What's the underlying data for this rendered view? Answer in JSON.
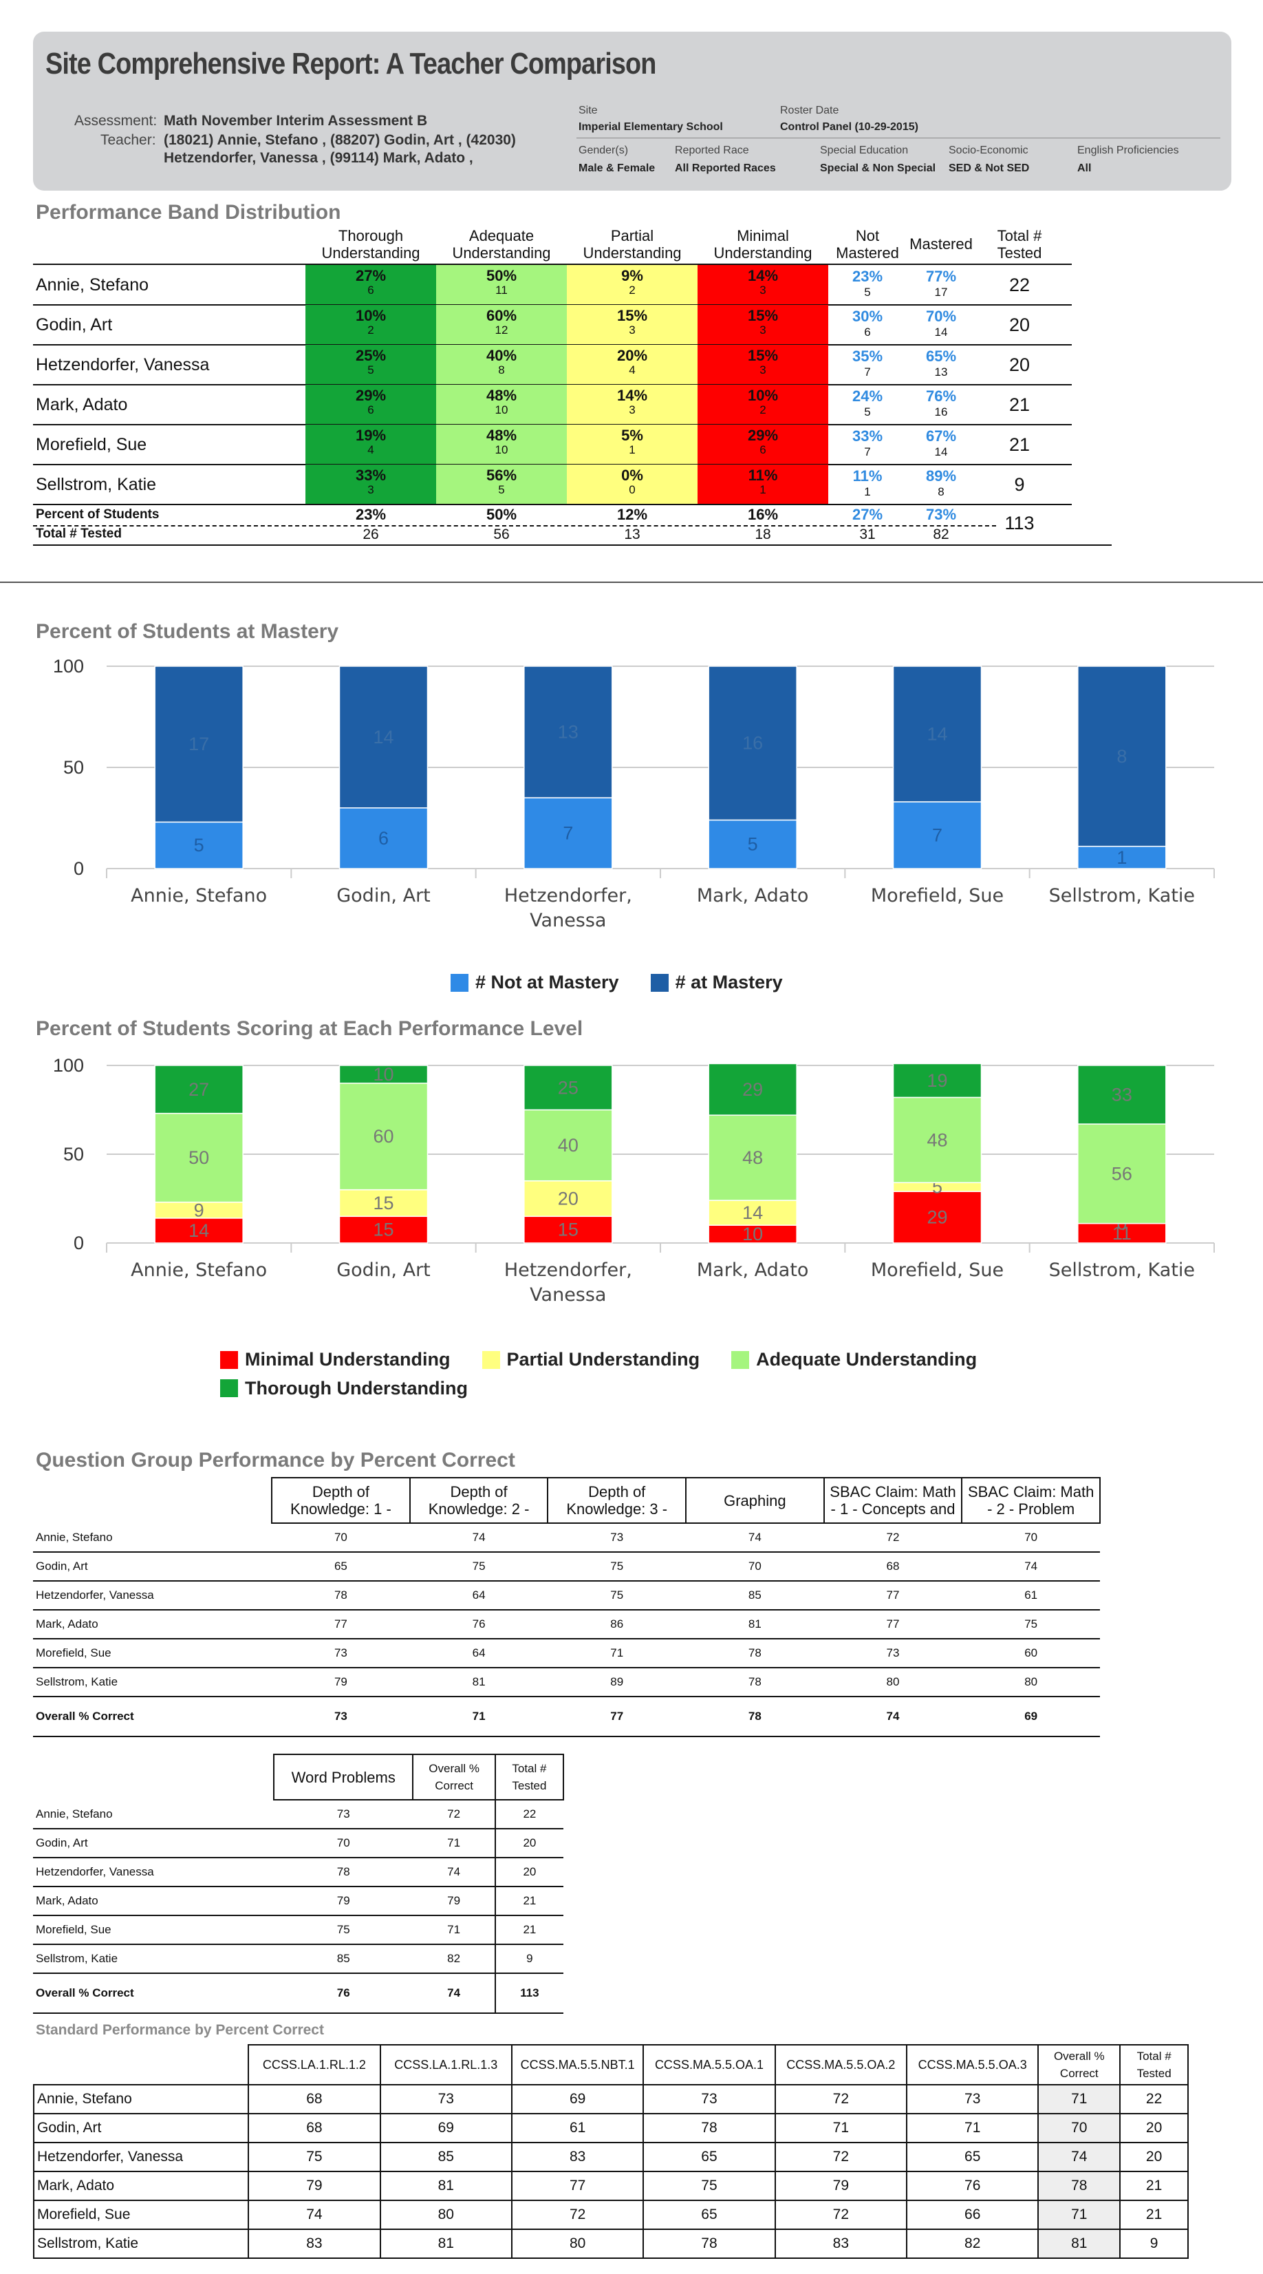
{
  "header": {
    "title": "Site Comprehensive Report: A Teacher Comparison",
    "assessment_label": "Assessment:",
    "assessment_value": "Math November Interim Assessment B",
    "teacher_label": "Teacher:",
    "teacher_value_line1": "(18021) Annie, Stefano , (88207) Godin, Art , (42030)",
    "teacher_value_line2": "Hetzendorfer, Vanessa , (99114) Mark, Adato ,",
    "site_label": "Site",
    "site_value": "Imperial Elementary School",
    "roster_label": "Roster Date",
    "roster_value": "Control Panel (10-29-2015)",
    "gender_label": "Gender(s)",
    "gender_value": "Male & Female",
    "race_label": "Reported Race",
    "race_value": "All Reported Races",
    "sped_label": "Special Education",
    "sped_value": "Special & Non Special",
    "ses_label": "Socio-Economic",
    "ses_value": "SED & Not SED",
    "ep_label": "English Proficiencies",
    "ep_value": "All"
  },
  "performance_band": {
    "title": "Performance Band Distribution",
    "headers": {
      "thorough": [
        "Thorough",
        "Understanding"
      ],
      "adequate": [
        "Adequate",
        "Understanding"
      ],
      "partial": [
        "Partial",
        "Understanding"
      ],
      "minimal": [
        "Minimal",
        "Understanding"
      ],
      "not_mastered": [
        "Not",
        "Mastered"
      ],
      "mastered": [
        "Mastered"
      ],
      "total": [
        "Total #",
        "Tested"
      ]
    },
    "colors": {
      "thorough": "#13a538",
      "adequate": "#a5f57e",
      "partial": "#ffff7f",
      "minimal": "#fe0000",
      "mastery_text": "#2f8ae0"
    },
    "rows": [
      {
        "name": "Annie, Stefano",
        "thorough": [
          "27%",
          "6"
        ],
        "adequate": [
          "50%",
          "11"
        ],
        "partial": [
          "9%",
          "2"
        ],
        "minimal": [
          "14%",
          "3"
        ],
        "not_mastered": [
          "23%",
          "5"
        ],
        "mastered": [
          "77%",
          "17"
        ],
        "total": "22"
      },
      {
        "name": "Godin, Art",
        "thorough": [
          "10%",
          "2"
        ],
        "adequate": [
          "60%",
          "12"
        ],
        "partial": [
          "15%",
          "3"
        ],
        "minimal": [
          "15%",
          "3"
        ],
        "not_mastered": [
          "30%",
          "6"
        ],
        "mastered": [
          "70%",
          "14"
        ],
        "total": "20"
      },
      {
        "name": "Hetzendorfer, Vanessa",
        "thorough": [
          "25%",
          "5"
        ],
        "adequate": [
          "40%",
          "8"
        ],
        "partial": [
          "20%",
          "4"
        ],
        "minimal": [
          "15%",
          "3"
        ],
        "not_mastered": [
          "35%",
          "7"
        ],
        "mastered": [
          "65%",
          "13"
        ],
        "total": "20"
      },
      {
        "name": "Mark, Adato",
        "thorough": [
          "29%",
          "6"
        ],
        "adequate": [
          "48%",
          "10"
        ],
        "partial": [
          "14%",
          "3"
        ],
        "minimal": [
          "10%",
          "2"
        ],
        "not_mastered": [
          "24%",
          "5"
        ],
        "mastered": [
          "76%",
          "16"
        ],
        "total": "21"
      },
      {
        "name": "Morefield, Sue",
        "thorough": [
          "19%",
          "4"
        ],
        "adequate": [
          "48%",
          "10"
        ],
        "partial": [
          "5%",
          "1"
        ],
        "minimal": [
          "29%",
          "6"
        ],
        "not_mastered": [
          "33%",
          "7"
        ],
        "mastered": [
          "67%",
          "14"
        ],
        "total": "21"
      },
      {
        "name": "Sellstrom, Katie",
        "thorough": [
          "33%",
          "3"
        ],
        "adequate": [
          "56%",
          "5"
        ],
        "partial": [
          "0%",
          "0"
        ],
        "minimal": [
          "11%",
          "1"
        ],
        "not_mastered": [
          "11%",
          "1"
        ],
        "mastered": [
          "89%",
          "8"
        ],
        "total": "9"
      }
    ],
    "percent_row": {
      "label": "Percent of Students",
      "thorough": "23%",
      "adequate": "50%",
      "partial": "12%",
      "minimal": "16%",
      "not_mastered": "27%",
      "mastered": "73%",
      "total": "113"
    },
    "total_row": {
      "label": "Total # Tested",
      "thorough": "26",
      "adequate": "56",
      "partial": "13",
      "minimal": "18",
      "not_mastered": "31",
      "mastered": "82"
    }
  },
  "chart_data": [
    {
      "type": "bar",
      "stacked": true,
      "title": "Percent of Students at Mastery",
      "categories": [
        [
          "Annie, Stefano"
        ],
        [
          "Godin, Art"
        ],
        [
          "Hetzendorfer,",
          "Vanessa"
        ],
        [
          "Mark, Adato"
        ],
        [
          "Morefield, Sue"
        ],
        [
          "Sellstrom, Katie"
        ]
      ],
      "yticks": [
        "100",
        "50",
        "0"
      ],
      "ylim": [
        0,
        100
      ],
      "series": [
        {
          "name": "# Not at Mastery",
          "color": "#2f8ae6",
          "values": [
            23,
            30,
            35,
            24,
            33,
            11
          ],
          "labels": [
            "5",
            "6",
            "7",
            "5",
            "7",
            "1"
          ]
        },
        {
          "name": "# at Mastery",
          "color": "#1e5ea5",
          "values": [
            77,
            70,
            65,
            76,
            67,
            89
          ],
          "labels": [
            "17",
            "14",
            "13",
            "16",
            "14",
            "8"
          ]
        }
      ],
      "legend": "bottom"
    },
    {
      "type": "bar",
      "stacked": true,
      "title": "Percent of Students Scoring at Each Performance Level",
      "categories": [
        [
          "Annie, Stefano"
        ],
        [
          "Godin, Art"
        ],
        [
          "Hetzendorfer,",
          "Vanessa"
        ],
        [
          "Mark, Adato"
        ],
        [
          "Morefield, Sue"
        ],
        [
          "Sellstrom, Katie"
        ]
      ],
      "yticks": [
        "100",
        "50",
        "0"
      ],
      "ylim": [
        0,
        100
      ],
      "series": [
        {
          "name": "Minimal Understanding",
          "color": "#fe0000",
          "values": [
            14,
            15,
            15,
            10,
            29,
            11
          ]
        },
        {
          "name": "Partial Understanding",
          "color": "#ffff7f",
          "values": [
            9,
            15,
            20,
            14,
            5,
            0
          ]
        },
        {
          "name": "Adequate Understanding",
          "color": "#a5f57e",
          "values": [
            50,
            60,
            40,
            48,
            48,
            56
          ]
        },
        {
          "name": "Thorough Understanding",
          "color": "#13a538",
          "values": [
            27,
            10,
            25,
            29,
            19,
            33
          ]
        }
      ],
      "legend": "bottom"
    }
  ],
  "question_group": {
    "title": "Question Group Performance by Percent Correct",
    "headers": [
      [
        "Depth of",
        "Knowledge: 1 -"
      ],
      [
        "Depth of",
        "Knowledge: 2 -"
      ],
      [
        "Depth of",
        "Knowledge: 3 -"
      ],
      [
        "Graphing"
      ],
      [
        "SBAC Claim: Math",
        "- 1 - Concepts and"
      ],
      [
        "SBAC Claim: Math",
        "- 2 - Problem"
      ]
    ],
    "rows": [
      {
        "name": "Annie, Stefano",
        "values": [
          "70",
          "74",
          "73",
          "74",
          "72",
          "70"
        ]
      },
      {
        "name": "Godin, Art",
        "values": [
          "65",
          "75",
          "75",
          "70",
          "68",
          "74"
        ]
      },
      {
        "name": "Hetzendorfer, Vanessa",
        "values": [
          "78",
          "64",
          "75",
          "85",
          "77",
          "61"
        ]
      },
      {
        "name": "Mark, Adato",
        "values": [
          "77",
          "76",
          "86",
          "81",
          "77",
          "75"
        ]
      },
      {
        "name": "Morefield, Sue",
        "values": [
          "73",
          "64",
          "71",
          "78",
          "73",
          "60"
        ]
      },
      {
        "name": "Sellstrom, Katie",
        "values": [
          "79",
          "81",
          "89",
          "78",
          "80",
          "80"
        ]
      },
      {
        "name": "Overall % Correct",
        "values": [
          "73",
          "71",
          "77",
          "78",
          "74",
          "69"
        ],
        "overall": true
      }
    ]
  },
  "word_problems": {
    "headers": [
      [
        "Word Problems"
      ],
      [
        "Overall %",
        "Correct"
      ],
      [
        "Total #",
        "Tested"
      ]
    ],
    "rows": [
      {
        "name": "Annie, Stefano",
        "values": [
          "73",
          "72",
          "22"
        ]
      },
      {
        "name": "Godin, Art",
        "values": [
          "70",
          "71",
          "20"
        ]
      },
      {
        "name": "Hetzendorfer, Vanessa",
        "values": [
          "78",
          "74",
          "20"
        ]
      },
      {
        "name": "Mark, Adato",
        "values": [
          "79",
          "79",
          "21"
        ]
      },
      {
        "name": "Morefield, Sue",
        "values": [
          "75",
          "71",
          "21"
        ]
      },
      {
        "name": "Sellstrom, Katie",
        "values": [
          "85",
          "82",
          "9"
        ]
      },
      {
        "name": "Overall % Correct",
        "values": [
          "76",
          "74",
          "113"
        ],
        "overall": true
      }
    ]
  },
  "standard_performance": {
    "title": "Standard Performance by Percent Correct",
    "headers": [
      [
        "CCSS.LA.1.RL.1.2"
      ],
      [
        "CCSS.LA.1.RL.1.3"
      ],
      [
        "CCSS.MA.5.5.NBT.1"
      ],
      [
        "CCSS.MA.5.5.OA.1"
      ],
      [
        "CCSS.MA.5.5.OA.2"
      ],
      [
        "CCSS.MA.5.5.OA.3"
      ],
      [
        "Overall %",
        "Correct"
      ],
      [
        "Total #",
        "Tested"
      ]
    ],
    "rows": [
      {
        "name": "Annie, Stefano",
        "values": [
          "68",
          "73",
          "69",
          "73",
          "72",
          "73",
          "71",
          "22"
        ]
      },
      {
        "name": "Godin, Art",
        "values": [
          "68",
          "69",
          "61",
          "78",
          "71",
          "71",
          "70",
          "20"
        ]
      },
      {
        "name": "Hetzendorfer, Vanessa",
        "values": [
          "75",
          "85",
          "83",
          "65",
          "72",
          "65",
          "74",
          "20"
        ]
      },
      {
        "name": "Mark, Adato",
        "values": [
          "79",
          "81",
          "77",
          "75",
          "79",
          "76",
          "78",
          "21"
        ]
      },
      {
        "name": "Morefield, Sue",
        "values": [
          "74",
          "80",
          "72",
          "65",
          "72",
          "66",
          "71",
          "21"
        ]
      },
      {
        "name": "Sellstrom, Katie",
        "values": [
          "83",
          "81",
          "80",
          "78",
          "83",
          "82",
          "81",
          "9"
        ]
      }
    ]
  }
}
